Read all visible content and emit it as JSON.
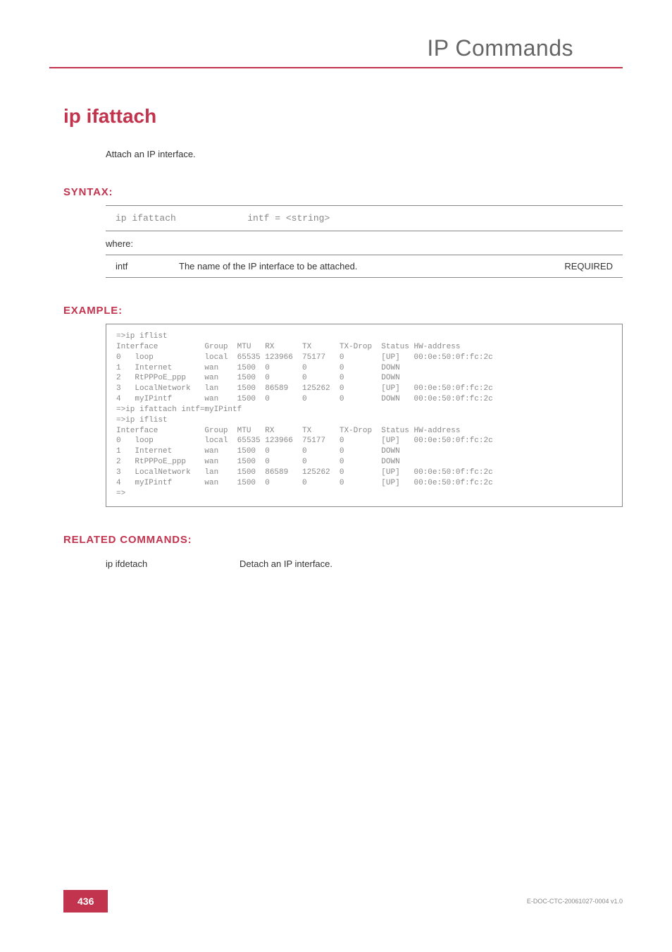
{
  "header": {
    "chapter": "IP Commands"
  },
  "command": {
    "title": "ip ifattach",
    "description": "Attach an IP interface."
  },
  "syntax": {
    "label": "SYNTAX:",
    "line": "ip ifattach             intf = <string>",
    "where": "where:",
    "param": {
      "name": "intf",
      "desc": "The name of the IP interface to be attached.",
      "req": "REQUIRED"
    }
  },
  "example": {
    "label": "EXAMPLE:",
    "text": "=>ip iflist\nInterface          Group  MTU   RX      TX      TX-Drop  Status HW-address\n0   loop           local  65535 123966  75177   0        [UP]   00:0e:50:0f:fc:2c\n1   Internet       wan    1500  0       0       0        DOWN\n2   RtPPPoE_ppp    wan    1500  0       0       0        DOWN\n3   LocalNetwork   lan    1500  86589   125262  0        [UP]   00:0e:50:0f:fc:2c\n4   myIPintf       wan    1500  0       0       0        DOWN   00:0e:50:0f:fc:2c\n=>ip ifattach intf=myIPintf\n=>ip iflist\nInterface          Group  MTU   RX      TX      TX-Drop  Status HW-address\n0   loop           local  65535 123966  75177   0        [UP]   00:0e:50:0f:fc:2c\n1   Internet       wan    1500  0       0       0        DOWN\n2   RtPPPoE_ppp    wan    1500  0       0       0        DOWN\n3   LocalNetwork   lan    1500  86589   125262  0        [UP]   00:0e:50:0f:fc:2c\n4   myIPintf       wan    1500  0       0       0        [UP]   00:0e:50:0f:fc:2c\n=>"
  },
  "related": {
    "label": "RELATED COMMANDS:",
    "items": [
      {
        "cmd": "ip ifdetach",
        "desc": "Detach an IP interface."
      }
    ]
  },
  "footer": {
    "page": "436",
    "docid": "E-DOC-CTC-20061027-0004 v1.0"
  },
  "colors": {
    "accent": "#c2334e",
    "body_text": "#333333",
    "mono_text": "#888888",
    "border": "#888888",
    "background": "#ffffff"
  },
  "typography": {
    "chapter_fontsize": 32,
    "title_fontsize": 28,
    "section_label_fontsize": 15,
    "body_fontsize": 13,
    "mono_fontsize_syntax": 13,
    "mono_fontsize_example": 11,
    "footer_docid_fontsize": 9,
    "pagenum_fontsize": 14,
    "font_body": "Helvetica Neue, Arial, sans-serif",
    "font_mono": "Courier New, monospace"
  }
}
